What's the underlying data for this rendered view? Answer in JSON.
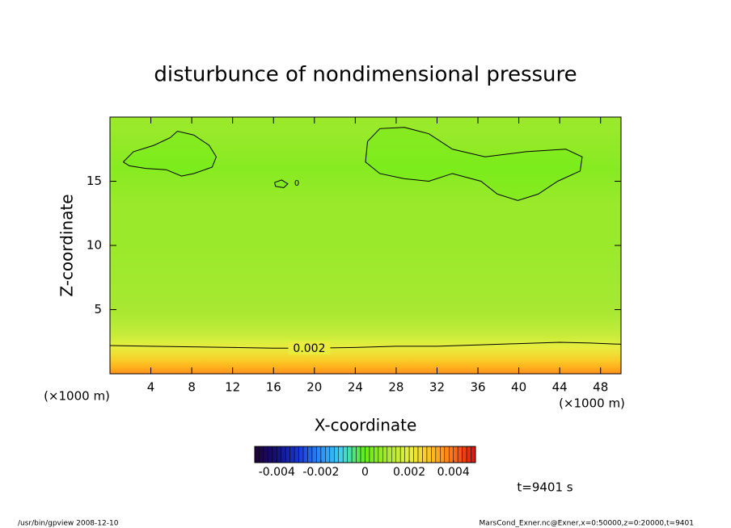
{
  "chart_data": {
    "type": "contour",
    "title": "disturbunce of nondimensional pressure",
    "xlabel": "X-coordinate",
    "ylabel": "Z-coordinate",
    "x_unit_label": "(×1000 m)",
    "xlim": [
      0,
      50
    ],
    "ylim": [
      0,
      20
    ],
    "xticks": [
      4,
      8,
      12,
      16,
      20,
      24,
      28,
      32,
      36,
      40,
      44,
      48
    ],
    "yticks": [
      5,
      10,
      15
    ],
    "z": [
      0,
      0.5,
      1,
      1.5,
      2,
      2.5,
      3,
      4,
      5,
      7,
      10,
      13,
      16,
      18,
      20
    ],
    "values": [
      0.0036,
      0.0032,
      0.0028,
      0.0024,
      0.0021,
      0.0018,
      0.0015,
      0.0012,
      0.001,
      0.0009,
      0.0008,
      0.0008,
      0.0005,
      0.0007,
      0.0008
    ],
    "contours": [
      {
        "level": 0.002,
        "x": [
          0,
          4,
          8,
          12,
          16,
          19.5,
          24,
          28,
          32,
          36,
          40,
          44,
          47,
          50
        ],
        "z": [
          2.2,
          2.15,
          2.1,
          2.05,
          2.0,
          2.0,
          2.05,
          2.15,
          2.15,
          2.25,
          2.35,
          2.45,
          2.4,
          2.3
        ]
      },
      {
        "level": 0,
        "x": [
          1.3,
          2.3,
          4.3,
          5.9,
          6.6,
          8.2,
          9.7,
          10.4,
          10.0,
          8.2,
          7.0,
          5.5,
          3.5,
          1.9,
          1.3
        ],
        "z": [
          16.5,
          17.3,
          17.8,
          18.4,
          18.9,
          18.6,
          17.8,
          16.9,
          16.1,
          15.6,
          15.4,
          15.9,
          16.0,
          16.2,
          16.5
        ]
      },
      {
        "level": 0,
        "x": [
          25.2,
          26.4,
          28.8,
          31.2,
          33.5,
          36.7,
          40.7,
          44.6,
          46.2,
          46.0,
          43.8,
          41.9,
          39.9,
          37.9,
          36.3,
          33.5,
          31.2,
          28.8,
          26.4,
          25.0,
          25.2
        ],
        "z": [
          18.1,
          19.1,
          19.2,
          18.7,
          17.5,
          16.9,
          17.3,
          17.5,
          16.9,
          15.8,
          15.0,
          14.0,
          13.5,
          14.0,
          15.0,
          15.6,
          15.0,
          15.2,
          15.6,
          16.5,
          18.1
        ]
      },
      {
        "level": 0,
        "x": [
          16.1,
          16.8,
          17.4,
          17.0,
          16.2,
          16.1
        ],
        "z": [
          14.9,
          15.1,
          14.8,
          14.5,
          14.6,
          14.9
        ]
      }
    ],
    "clim": [
      -0.005,
      0.005
    ],
    "cticks": [
      -0.004,
      -0.002,
      0,
      0.002,
      0.004
    ],
    "colormap": [
      "#20003a",
      "#14107a",
      "#1838d8",
      "#2a90ff",
      "#40d8e8",
      "#66ee10",
      "#a8e832",
      "#e6f040",
      "#ffc020",
      "#ff7018",
      "#d81010"
    ],
    "time_label": "t=9401 s",
    "footer_left": "/usr/bin/gpview   2008-12-10",
    "footer_right": "MarsCond_Exner.nc@Exner,x=0:50000,z=0:20000,t=9401"
  }
}
